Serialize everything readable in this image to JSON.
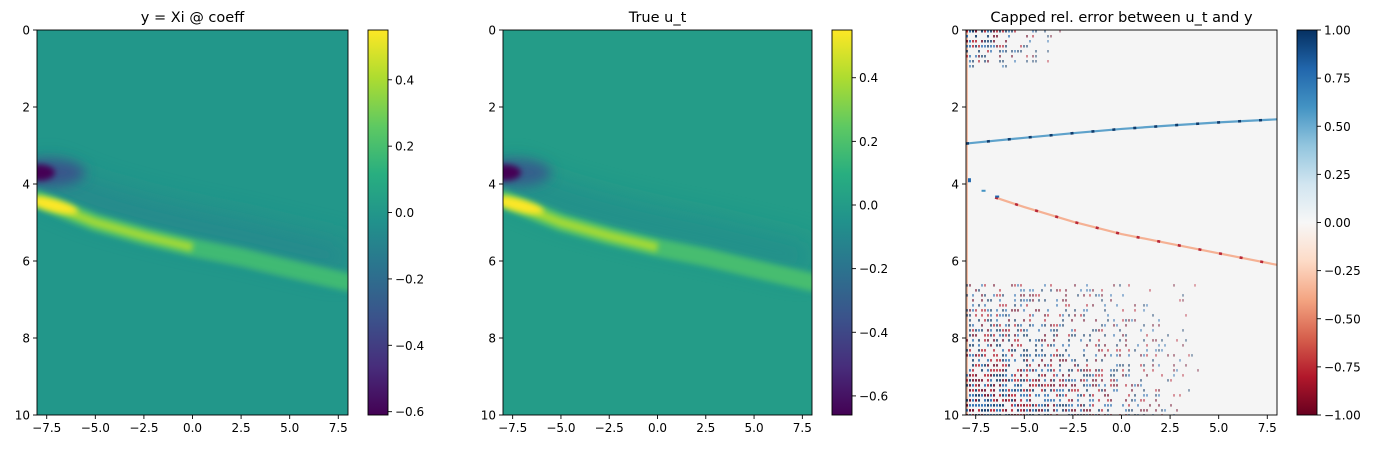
{
  "chart_data": [
    {
      "type": "heatmap",
      "title": "y = Xi @ coeff",
      "xlabel": "",
      "ylabel": "",
      "xlim": [
        -8,
        8
      ],
      "ylim": [
        10,
        0
      ],
      "x_ticks": [
        -7.5,
        -5.0,
        -2.5,
        0.0,
        2.5,
        5.0,
        7.5
      ],
      "x_tick_labels": [
        "−7.5",
        "−5.0",
        "−2.5",
        "0.0",
        "2.5",
        "5.0",
        "7.5"
      ],
      "y_ticks": [
        0,
        2,
        4,
        6,
        8,
        10
      ],
      "y_tick_labels": [
        "0",
        "2",
        "4",
        "6",
        "8",
        "10"
      ],
      "colormap": "viridis",
      "colorbar": {
        "min": -0.61,
        "max": 0.55,
        "ticks": [
          -0.6,
          -0.4,
          -0.2,
          0.0,
          0.2,
          0.4
        ],
        "tick_labels": [
          "−0.6",
          "−0.4",
          "−0.2",
          "0.0",
          "0.2",
          "0.4"
        ]
      },
      "features": {
        "background_value": 0.0,
        "positive_ridge": {
          "x": [
            -8,
            -5,
            -2.5,
            0,
            2.5,
            5,
            8
          ],
          "y": [
            4.4,
            5.0,
            5.35,
            5.65,
            5.9,
            6.2,
            6.55
          ],
          "peak": 0.55
        },
        "negative_lobe": {
          "x": -8,
          "y": 3.6,
          "peak": -0.61
        }
      }
    },
    {
      "type": "heatmap",
      "title": "True u_t",
      "xlabel": "",
      "ylabel": "",
      "xlim": [
        -8,
        8
      ],
      "ylim": [
        10,
        0
      ],
      "x_ticks": [
        -7.5,
        -5.0,
        -2.5,
        0.0,
        2.5,
        5.0,
        7.5
      ],
      "x_tick_labels": [
        "−7.5",
        "−5.0",
        "−2.5",
        "0.0",
        "2.5",
        "5.0",
        "7.5"
      ],
      "y_ticks": [
        0,
        2,
        4,
        6,
        8,
        10
      ],
      "y_tick_labels": [
        "0",
        "2",
        "4",
        "6",
        "8",
        "10"
      ],
      "colormap": "viridis",
      "colorbar": {
        "min": -0.66,
        "max": 0.55,
        "ticks": [
          -0.6,
          -0.4,
          -0.2,
          0.0,
          0.2,
          0.4
        ],
        "tick_labels": [
          "−0.6",
          "−0.4",
          "−0.2",
          "0.0",
          "0.2",
          "0.4"
        ]
      },
      "features": {
        "background_value": 0.0,
        "positive_ridge": {
          "x": [
            -8,
            -5,
            -2.5,
            0,
            2.5,
            5,
            8
          ],
          "y": [
            4.4,
            5.0,
            5.35,
            5.65,
            5.9,
            6.2,
            6.55
          ],
          "peak": 0.55
        },
        "negative_lobe": {
          "x": -8,
          "y": 3.6,
          "peak": -0.66
        }
      }
    },
    {
      "type": "heatmap",
      "title": "Capped rel. error between u_t and y",
      "xlabel": "",
      "ylabel": "",
      "xlim": [
        -8,
        8
      ],
      "ylim": [
        10,
        0
      ],
      "x_ticks": [
        -7.5,
        -5.0,
        -2.5,
        0.0,
        2.5,
        5.0,
        7.5
      ],
      "x_tick_labels": [
        "−7.5",
        "−5.0",
        "−2.5",
        "0.0",
        "2.5",
        "5.0",
        "7.5"
      ],
      "y_ticks": [
        0,
        2,
        4,
        6,
        8,
        10
      ],
      "y_tick_labels": [
        "0",
        "2",
        "4",
        "6",
        "8",
        "10"
      ],
      "colormap": "RdBu",
      "colorbar": {
        "min": -1.0,
        "max": 1.0,
        "ticks": [
          -1.0,
          -0.75,
          -0.5,
          -0.25,
          0.0,
          0.25,
          0.5,
          0.75,
          1.0
        ],
        "tick_labels": [
          "−1.00",
          "−0.75",
          "−0.50",
          "−0.25",
          "0.00",
          "0.25",
          "0.50",
          "0.75",
          "1.00"
        ]
      },
      "features": {
        "background_value": 0.0,
        "positive_curve": {
          "x": [
            -8,
            -5,
            -2.5,
            0,
            2.5,
            5,
            8
          ],
          "y": [
            2.95,
            2.8,
            2.68,
            2.57,
            2.48,
            2.4,
            2.32
          ]
        },
        "negative_curve": {
          "x": [
            -6.5,
            -5,
            -2.5,
            0,
            2.5,
            5,
            8
          ],
          "y": [
            4.35,
            4.6,
            4.98,
            5.3,
            5.55,
            5.8,
            6.1
          ]
        },
        "noise_regions": [
          {
            "x": [
              -8,
              -3
            ],
            "y": [
              0,
              1
            ]
          },
          {
            "x": [
              -8,
              4.5
            ],
            "y": [
              6.6,
              10
            ]
          }
        ]
      }
    }
  ]
}
